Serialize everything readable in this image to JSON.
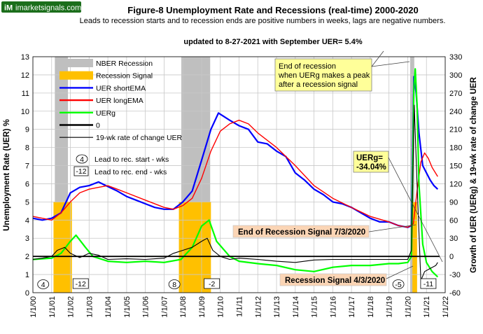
{
  "logo": {
    "text": "imarketsignals.com",
    "mark": "iM"
  },
  "chart_data": {
    "type": "line",
    "title": "Figure-8  Unemployment  Rate and Recessions (real-time) 2000-2020",
    "subtitle": "Leads to recession starts and to recession ends are positive numbers in weeks, lags are negative numbers.",
    "update_note": "updated to 8-27-2021 with September UER= 5.4%",
    "ylabel_left": "Unemployment  Rate (UER) %",
    "ylabel_right": "Growth of UER (UERg) & 19-wk rate of change UER",
    "ylim_left": [
      0,
      13
    ],
    "ylim_right": [
      -60,
      330
    ],
    "xlim": [
      2000.0,
      2022.0
    ],
    "x_tick_labels": [
      "1/1/00",
      "1/1/01",
      "1/1/02",
      "1/1/03",
      "1/1/04",
      "1/1/05",
      "1/1/06",
      "1/1/07",
      "1/1/08",
      "1/1/09",
      "1/1/10",
      "1/1/11",
      "1/1/12",
      "1/1/13",
      "1/1/14",
      "1/1/15",
      "1/1/16",
      "1/1/17",
      "1/1/18",
      "1/1/19",
      "1/1/20",
      "1/1/21",
      "1/1/22"
    ],
    "y_left_ticks": [
      "0",
      "1",
      "2",
      "3",
      "4",
      "5",
      "6",
      "7",
      "8",
      "9",
      "10",
      "11",
      "12",
      "13"
    ],
    "y_right_ticks": [
      "-60",
      "-30",
      "0",
      "30",
      "60",
      "90",
      "120",
      "150",
      "180",
      "210",
      "240",
      "270",
      "300",
      "330"
    ],
    "grid": true,
    "legend_position": "top-left",
    "legend": [
      {
        "label": "NBER Recession",
        "color": "#bfbfbf",
        "kind": "box"
      },
      {
        "label": "Recession Signal",
        "color": "#ffc000",
        "kind": "box"
      },
      {
        "label": "UER shortEMA",
        "color": "#0000ff",
        "kind": "line"
      },
      {
        "label": "UER longEMA",
        "color": "#ff0000",
        "kind": "line"
      },
      {
        "label": "UERg",
        "color": "#00ff00",
        "kind": "line"
      },
      {
        "label": "0",
        "color": "#000000",
        "kind": "line"
      },
      {
        "label": "19-wk rate of change UER",
        "color": "#000000",
        "kind": "thin"
      }
    ],
    "legend_marks": [
      {
        "mark": "4",
        "label": "Lead to rec. start - wks"
      },
      {
        "mark": "-12",
        "label": "Lead to rec. end - wks"
      }
    ],
    "nber_recessions": [
      [
        2001.17,
        2001.87
      ],
      [
        2007.92,
        2009.46
      ],
      [
        2020.13,
        2020.35
      ]
    ],
    "recession_signals": [
      [
        2001.1,
        2002.08
      ],
      [
        2007.79,
        2009.5
      ],
      [
        2020.25,
        2020.5
      ]
    ],
    "series": [
      {
        "name": "UER shortEMA",
        "axis": "left",
        "color": "#0000ff",
        "x": [
          2000.0,
          2000.5,
          2001.0,
          2001.5,
          2002.0,
          2002.5,
          2003.0,
          2003.5,
          2003.9,
          2004.5,
          2005.0,
          2005.5,
          2006.0,
          2006.5,
          2007.0,
          2007.5,
          2008.0,
          2008.5,
          2009.0,
          2009.5,
          2009.9,
          2010.5,
          2011.0,
          2011.5,
          2012.0,
          2012.5,
          2013.0,
          2013.5,
          2014.0,
          2014.5,
          2015.0,
          2015.5,
          2016.0,
          2016.5,
          2017.0,
          2017.5,
          2018.0,
          2018.5,
          2019.0,
          2019.5,
          2020.0,
          2020.2,
          2020.33,
          2020.45,
          2020.6,
          2020.8,
          2021.0,
          2021.2,
          2021.4,
          2021.6
        ],
        "y": [
          4.1,
          4.0,
          4.1,
          4.4,
          5.5,
          5.8,
          5.9,
          6.1,
          5.9,
          5.6,
          5.3,
          5.1,
          4.9,
          4.7,
          4.6,
          4.6,
          5.0,
          5.6,
          7.3,
          9.0,
          9.9,
          9.5,
          9.2,
          9.0,
          8.3,
          8.2,
          7.8,
          7.5,
          6.6,
          6.2,
          5.7,
          5.4,
          5.0,
          4.9,
          4.7,
          4.4,
          4.1,
          3.9,
          3.9,
          3.7,
          3.6,
          3.7,
          11.9,
          11.0,
          8.8,
          7.0,
          6.6,
          6.2,
          5.9,
          5.7
        ]
      },
      {
        "name": "UER longEMA",
        "axis": "left",
        "color": "#ff0000",
        "x": [
          2000.0,
          2001.0,
          2001.5,
          2002.0,
          2002.5,
          2003.0,
          2003.5,
          2004.0,
          2004.5,
          2005.0,
          2006.0,
          2007.0,
          2007.5,
          2008.0,
          2008.5,
          2009.0,
          2009.5,
          2010.0,
          2010.5,
          2011.0,
          2011.5,
          2012.0,
          2013.0,
          2014.0,
          2015.0,
          2016.0,
          2017.0,
          2018.0,
          2019.0,
          2019.5,
          2020.0,
          2020.3,
          2020.5,
          2020.7,
          2020.9,
          2021.1,
          2021.3,
          2021.6
        ],
        "y": [
          4.2,
          4.0,
          4.4,
          5.0,
          5.5,
          5.7,
          5.8,
          5.9,
          5.7,
          5.5,
          5.1,
          4.7,
          4.6,
          4.8,
          5.2,
          6.3,
          7.8,
          8.9,
          9.3,
          9.5,
          9.3,
          8.8,
          8.0,
          7.0,
          5.9,
          5.2,
          4.7,
          4.2,
          3.9,
          3.7,
          3.6,
          3.8,
          5.6,
          7.2,
          7.7,
          7.4,
          6.9,
          6.4
        ]
      },
      {
        "name": "UERg",
        "axis": "right",
        "color": "#00ff00",
        "x": [
          2000.0,
          2001.0,
          2001.5,
          2002.0,
          2002.3,
          2002.8,
          2003.2,
          2003.7,
          2004.0,
          2005.0,
          2006.0,
          2007.0,
          2007.9,
          2008.5,
          2009.0,
          2009.4,
          2009.8,
          2010.5,
          2011.0,
          2012.0,
          2013.0,
          2014.0,
          2015.0,
          2016.0,
          2017.0,
          2018.0,
          2019.0,
          2019.5,
          2020.0,
          2020.2,
          2020.33,
          2020.4,
          2020.5,
          2020.6,
          2020.8,
          2021.0,
          2021.3,
          2021.6
        ],
        "y": [
          -5,
          -3,
          5,
          25,
          35,
          15,
          0,
          -5,
          -8,
          -10,
          -8,
          -10,
          -5,
          15,
          50,
          60,
          25,
          0,
          -8,
          -12,
          -15,
          -22,
          -25,
          -18,
          -15,
          -15,
          -12,
          -12,
          -10,
          0,
          280,
          310,
          250,
          120,
          20,
          -10,
          -25,
          -34
        ]
      },
      {
        "name": "19-wk rate of change UER",
        "axis": "right",
        "color": "#000000",
        "x": [
          2000.0,
          2000.5,
          2001.0,
          2001.3,
          2001.7,
          2002.0,
          2002.5,
          2003.0,
          2003.5,
          2004.0,
          2005.0,
          2006.0,
          2007.0,
          2007.5,
          2008.0,
          2008.5,
          2009.0,
          2009.3,
          2009.6,
          2010.0,
          2010.5,
          2011.0,
          2012.0,
          2013.0,
          2014.0,
          2015.0,
          2016.0,
          2017.0,
          2018.0,
          2019.0,
          2020.0,
          2020.2,
          2020.35,
          2020.5,
          2020.7,
          2020.9,
          2021.2,
          2021.5,
          2021.6
        ],
        "y": [
          -5,
          -3,
          0,
          10,
          15,
          5,
          -2,
          5,
          2,
          -5,
          -4,
          -5,
          -3,
          5,
          10,
          15,
          25,
          30,
          10,
          0,
          -5,
          -3,
          -5,
          -8,
          -10,
          -6,
          -5,
          -5,
          -5,
          -5,
          -5,
          10,
          250,
          120,
          -40,
          -25,
          -20,
          -15,
          -10
        ]
      },
      {
        "name": "0",
        "axis": "right",
        "color": "#000000",
        "x": [
          2000.0,
          2021.7
        ],
        "y": [
          0,
          0
        ]
      }
    ],
    "annotations": {
      "start_leads": [
        {
          "x": 2000.55,
          "label": "4"
        },
        {
          "x": 2007.55,
          "label": "8"
        },
        {
          "x": 2019.5,
          "label": "-5"
        }
      ],
      "end_leads": [
        {
          "x": 2002.55,
          "label": "-12"
        },
        {
          "x": 2009.55,
          "label": "-2"
        },
        {
          "x": 2021.1,
          "label": "-11"
        }
      ],
      "callout_end": "End of recession when UERg makes a peak after a recession signal",
      "callout_uerg": "UERg= -34.04%",
      "label_end_signal": "End of Recession Signal 7/3/2020",
      "label_start_signal": "Recession Signal 4/3/2020"
    }
  }
}
